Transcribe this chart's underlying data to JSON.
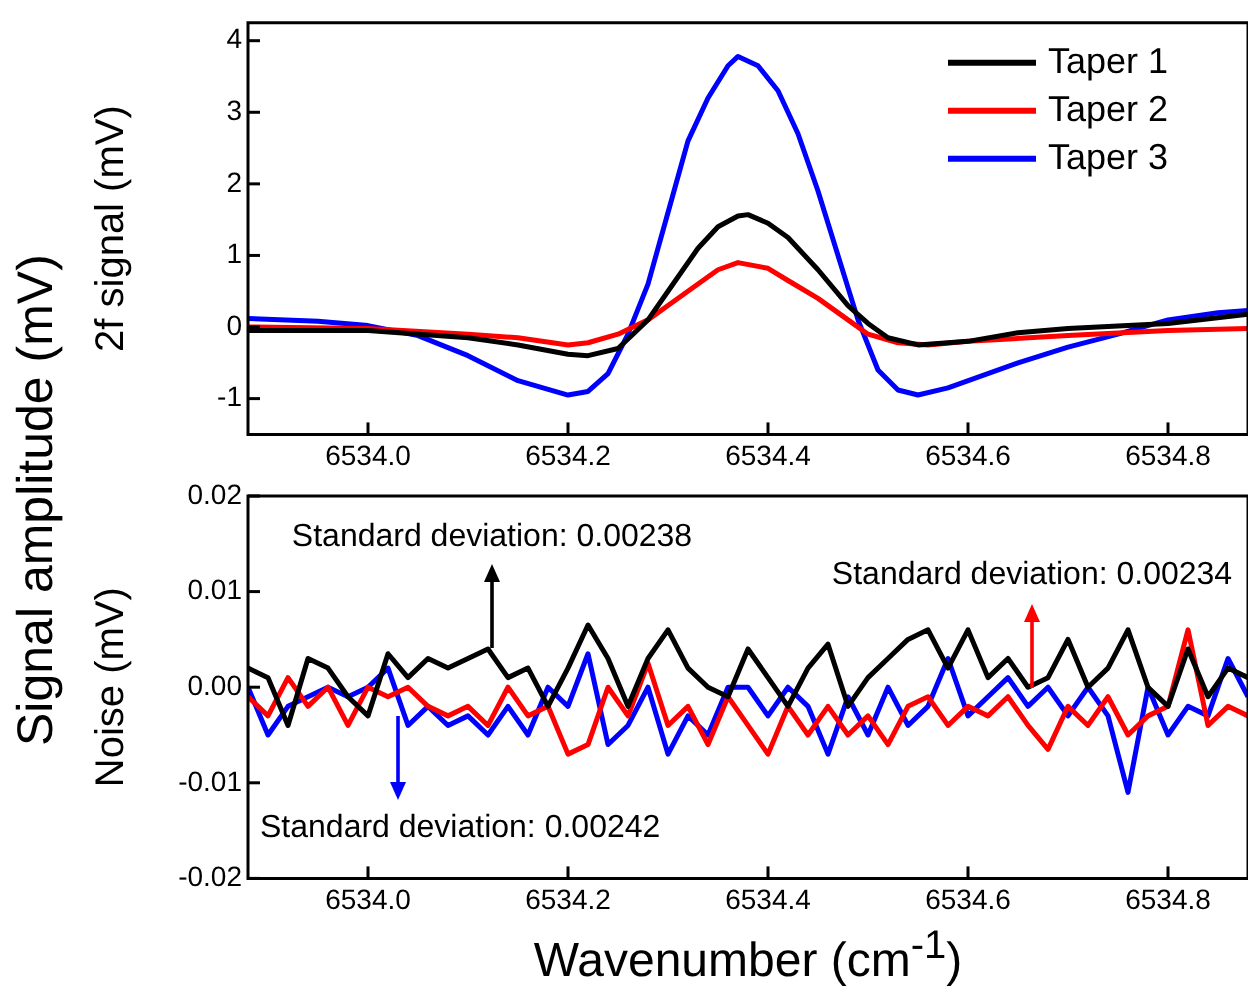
{
  "chart_data": [
    {
      "type": "line",
      "ylabel": "2f signal (mV)",
      "annotations": [
        "Signal amplitude (mV)"
      ],
      "xlim": [
        6533.88,
        6534.88
      ],
      "xticks": [
        {
          "value": 6534,
          "label": "6534.0"
        },
        6534.2,
        6534.4,
        6534.6,
        6534.8
      ],
      "ylim": [
        -1.5,
        4.25
      ],
      "yticks": [
        -1,
        0,
        1,
        2,
        3,
        4
      ],
      "grid": false,
      "legend": "top right",
      "line_style": "solid",
      "marker": "none",
      "series": [
        {
          "name": "Taper 1",
          "color": "#000000",
          "x": [
            6533.88,
            6534.0,
            6534.1,
            6534.15,
            6534.2,
            6534.22,
            6534.25,
            6534.28,
            6534.3,
            6534.33,
            6534.35,
            6534.37,
            6534.38,
            6534.4,
            6534.42,
            6534.45,
            6534.48,
            6534.5,
            6534.52,
            6534.55,
            6534.6,
            6534.65,
            6534.7,
            6534.8,
            6534.88
          ],
          "values": [
            -0.05,
            -0.05,
            -0.15,
            -0.25,
            -0.38,
            -0.4,
            -0.3,
            0.1,
            0.5,
            1.1,
            1.4,
            1.55,
            1.57,
            1.45,
            1.25,
            0.8,
            0.3,
            0.05,
            -0.15,
            -0.25,
            -0.2,
            -0.08,
            -0.02,
            0.05,
            0.18
          ]
        },
        {
          "name": "Taper 2",
          "color": "#ff0000",
          "x": [
            6533.88,
            6534.0,
            6534.1,
            6534.15,
            6534.2,
            6534.22,
            6534.25,
            6534.28,
            6534.3,
            6534.33,
            6534.35,
            6534.37,
            6534.4,
            6534.42,
            6534.45,
            6534.48,
            6534.5,
            6534.53,
            6534.56,
            6534.6,
            6534.7,
            6534.8,
            6534.88
          ],
          "values": [
            0.0,
            -0.02,
            -0.1,
            -0.15,
            -0.25,
            -0.22,
            -0.1,
            0.1,
            0.3,
            0.6,
            0.8,
            0.9,
            0.82,
            0.65,
            0.4,
            0.1,
            -0.1,
            -0.22,
            -0.25,
            -0.2,
            -0.12,
            -0.05,
            -0.02
          ]
        },
        {
          "name": "Taper 3",
          "color": "#0000ff",
          "x": [
            6533.88,
            6533.95,
            6534.0,
            6534.05,
            6534.1,
            6534.15,
            6534.2,
            6534.22,
            6534.24,
            6534.26,
            6534.28,
            6534.3,
            6534.32,
            6534.34,
            6534.36,
            6534.37,
            6534.39,
            6534.41,
            6534.43,
            6534.45,
            6534.47,
            6534.49,
            6534.51,
            6534.53,
            6534.55,
            6534.58,
            6534.65,
            6534.7,
            6534.75,
            6534.8,
            6534.85,
            6534.88
          ],
          "values": [
            0.12,
            0.08,
            0.02,
            -0.12,
            -0.4,
            -0.75,
            -0.95,
            -0.9,
            -0.65,
            -0.1,
            0.6,
            1.6,
            2.6,
            3.2,
            3.65,
            3.78,
            3.65,
            3.3,
            2.7,
            1.9,
            1.0,
            0.1,
            -0.6,
            -0.88,
            -0.95,
            -0.85,
            -0.5,
            -0.28,
            -0.1,
            0.1,
            0.2,
            0.23
          ]
        }
      ]
    },
    {
      "type": "line",
      "ylabel": "Noise (mV)",
      "xlabel": "Wavenumber (cm$^{-1}$)",
      "xlim": [
        6533.88,
        6534.88
      ],
      "xticks": [
        {
          "value": 6534,
          "label": "6534.0"
        },
        6534.2,
        6534.4,
        6534.6,
        6534.8
      ],
      "ylim": [
        -0.02,
        0.02
      ],
      "yticks": [
        -0.02,
        -0.01,
        {
          "value": 0,
          "label": "0.00"
        },
        0.01,
        0.02
      ],
      "grid": false,
      "line_style": "solid",
      "marker": "none",
      "annotations": [
        {
          "text": "Standard deviation: 0.00238",
          "x": 6534.124,
          "y": 0.004
        },
        {
          "text": "Standard deviation: 0.00234",
          "x": 6534.664,
          "y": 0.0
        },
        {
          "text": "Standard deviation: 0.00242",
          "x": 6534.03,
          "y": -0.003
        }
      ],
      "x": [
        6533.88,
        6533.9,
        6533.92,
        6533.94,
        6533.96,
        6533.98,
        6534.0,
        6534.02,
        6534.04,
        6534.06,
        6534.08,
        6534.1,
        6534.12,
        6534.14,
        6534.16,
        6534.18,
        6534.2,
        6534.22,
        6534.24,
        6534.26,
        6534.28,
        6534.3,
        6534.32,
        6534.34,
        6534.36,
        6534.38,
        6534.4,
        6534.42,
        6534.44,
        6534.46,
        6534.48,
        6534.5,
        6534.52,
        6534.54,
        6534.56,
        6534.58,
        6534.6,
        6534.62,
        6534.64,
        6534.66,
        6534.68,
        6534.7,
        6534.72,
        6534.74,
        6534.76,
        6534.78,
        6534.8,
        6534.82,
        6534.84,
        6534.86,
        6534.88
      ],
      "series": [
        {
          "color": "#000000",
          "values": [
            0.002,
            0.001,
            -0.004,
            0.003,
            0.002,
            -0.001,
            -0.003,
            0.0035,
            0.001,
            0.003,
            0.002,
            0.003,
            0.004,
            0.001,
            0.002,
            -0.002,
            0.002,
            0.0065,
            0.003,
            -0.002,
            0.003,
            0.006,
            0.002,
            0.0,
            -0.001,
            0.004,
            0.001,
            -0.002,
            0.002,
            0.0045,
            -0.002,
            0.001,
            0.003,
            0.005,
            0.006,
            0.002,
            0.006,
            0.001,
            0.003,
            0.0,
            0.001,
            0.005,
            0.0,
            0.002,
            0.006,
            0.0,
            -0.002,
            0.004,
            -0.001,
            0.002,
            0.001
          ]
        },
        {
          "color": "#ff0000",
          "values": [
            -0.001,
            -0.003,
            0.001,
            -0.002,
            0.0,
            -0.004,
            0.0,
            -0.001,
            0.0,
            -0.002,
            -0.003,
            -0.002,
            -0.004,
            0.0,
            -0.003,
            -0.002,
            -0.007,
            -0.006,
            0.0,
            -0.003,
            0.0025,
            -0.004,
            -0.002,
            -0.006,
            -0.001,
            -0.004,
            -0.007,
            -0.002,
            -0.005,
            -0.002,
            -0.005,
            -0.003,
            -0.006,
            -0.002,
            -0.001,
            -0.004,
            -0.002,
            -0.003,
            -0.001,
            -0.004,
            -0.0065,
            -0.002,
            -0.004,
            -0.001,
            -0.005,
            -0.003,
            -0.002,
            0.006,
            -0.004,
            -0.002,
            -0.003
          ]
        },
        {
          "color": "#0000ff",
          "values": [
            0.0,
            -0.005,
            -0.002,
            -0.001,
            0.0,
            -0.001,
            0.0,
            0.002,
            -0.004,
            -0.002,
            -0.004,
            -0.003,
            -0.005,
            -0.002,
            -0.005,
            0.0,
            -0.002,
            0.0035,
            -0.006,
            -0.004,
            0.0,
            -0.007,
            -0.003,
            -0.005,
            0.0,
            0.0,
            -0.003,
            0.0,
            -0.002,
            -0.007,
            -0.001,
            -0.005,
            0.0,
            -0.004,
            -0.002,
            0.003,
            -0.003,
            -0.001,
            0.001,
            -0.002,
            0.0,
            -0.003,
            0.0,
            -0.003,
            -0.011,
            0.0,
            -0.005,
            -0.002,
            -0.003,
            0.003,
            -0.001
          ]
        }
      ]
    }
  ]
}
